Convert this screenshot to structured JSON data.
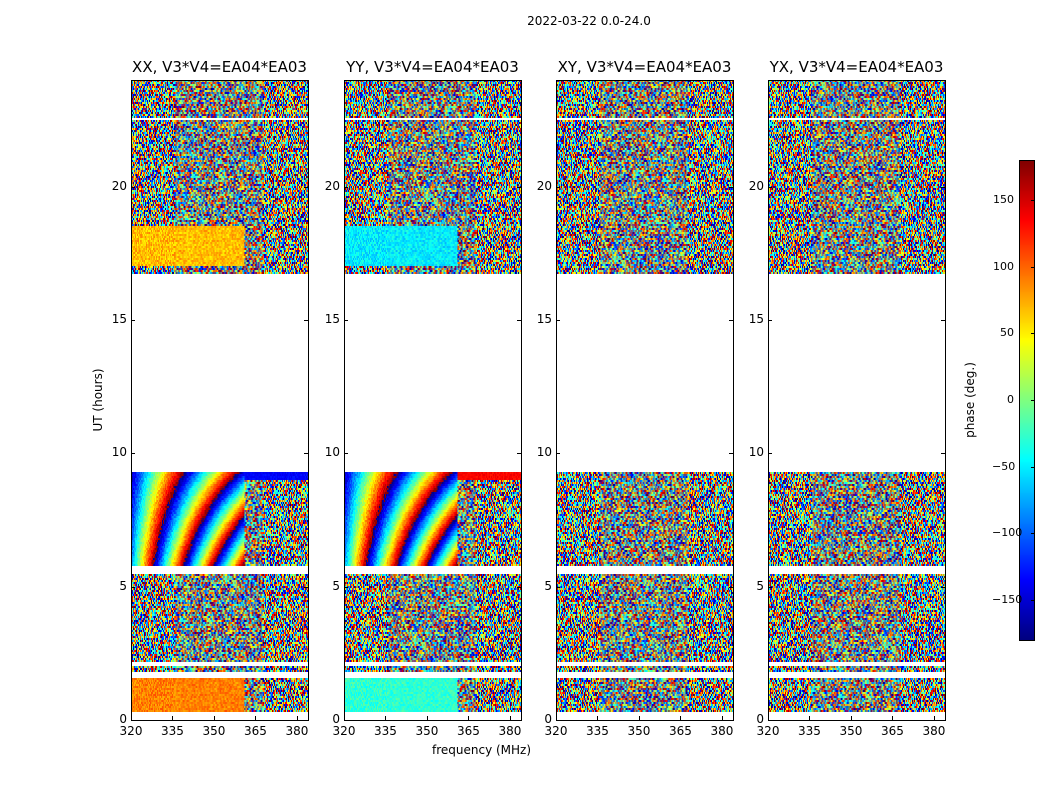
{
  "suptitle": "2022-03-22 0.0-24.0",
  "chart_data": {
    "type": "heatmap",
    "panels": [
      {
        "title": "XX, V3*V4=EA04*EA03",
        "pol": "XX"
      },
      {
        "title": "YY, V3*V4=EA04*EA03",
        "pol": "YY"
      },
      {
        "title": "XY, V3*V4=EA04*EA03",
        "pol": "XY"
      },
      {
        "title": "YX, V3*V4=EA04*EA03",
        "pol": "YX"
      }
    ],
    "xlabel": "frequency (MHz)",
    "ylabel": "UT (hours)",
    "xlim": [
      320,
      384
    ],
    "ylim": [
      0,
      24
    ],
    "xticks": [
      320,
      335,
      350,
      365,
      380
    ],
    "yticks": [
      0,
      5,
      10,
      15,
      20
    ],
    "colorbar": {
      "label": "phase (deg.)",
      "range": [
        -180,
        180
      ],
      "ticks": [
        150,
        100,
        50,
        0,
        -50,
        -100,
        -150
      ],
      "colormap": "jet"
    },
    "data_time_ranges_hours": [
      [
        0.3,
        1.6
      ],
      [
        1.8,
        2.0
      ],
      [
        2.2,
        5.5
      ],
      [
        5.8,
        9.3
      ],
      [
        16.7,
        22.5
      ],
      [
        22.6,
        24.0
      ]
    ],
    "gap_hours": [
      9.3,
      16.7
    ]
  }
}
